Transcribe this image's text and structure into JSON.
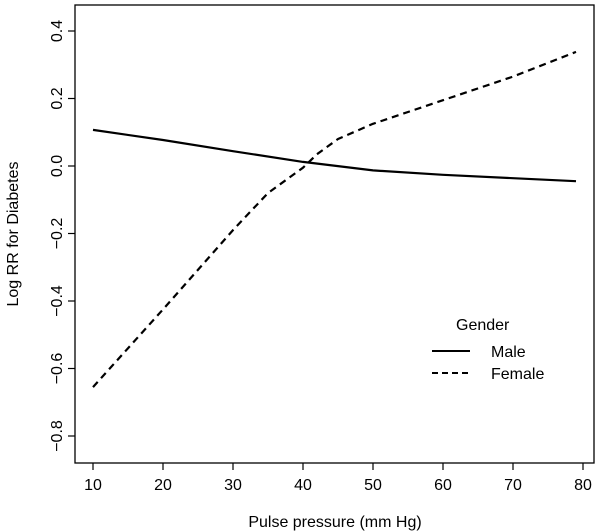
{
  "chart_data": {
    "type": "line",
    "title": "",
    "xlabel": "Pulse pressure (mm Hg)",
    "ylabel": "Log RR for Diabetes",
    "xlim": [
      10,
      79
    ],
    "ylim": [
      -0.8,
      0.4
    ],
    "x_ticks": [
      10,
      20,
      30,
      40,
      50,
      60,
      70,
      80
    ],
    "y_ticks": [
      -0.8,
      -0.6,
      -0.4,
      -0.2,
      0.0,
      0.2,
      0.4
    ],
    "x_tick_labels": [
      "10",
      "20",
      "30",
      "40",
      "50",
      "60",
      "70",
      "80"
    ],
    "y_tick_labels": [
      "−0.8",
      "−0.6",
      "−0.4",
      "−0.2",
      "0.0",
      "0.2",
      "0.4"
    ],
    "grid": false,
    "legend": {
      "title": "Gender",
      "position": "bottom-right"
    },
    "series": [
      {
        "name": "Male",
        "line_style": "solid",
        "color": "#000000",
        "x": [
          10,
          20,
          30,
          40,
          50,
          60,
          70,
          79
        ],
        "y": [
          0.107,
          0.077,
          0.044,
          0.012,
          -0.013,
          -0.026,
          -0.036,
          -0.045
        ]
      },
      {
        "name": "Female",
        "line_style": "dashed",
        "color": "#000000",
        "x": [
          10,
          20,
          30,
          35,
          40,
          42,
          45,
          50,
          60,
          70,
          79
        ],
        "y": [
          -0.655,
          -0.425,
          -0.19,
          -0.08,
          -0.005,
          0.035,
          0.08,
          0.125,
          0.195,
          0.265,
          0.338
        ]
      }
    ]
  }
}
